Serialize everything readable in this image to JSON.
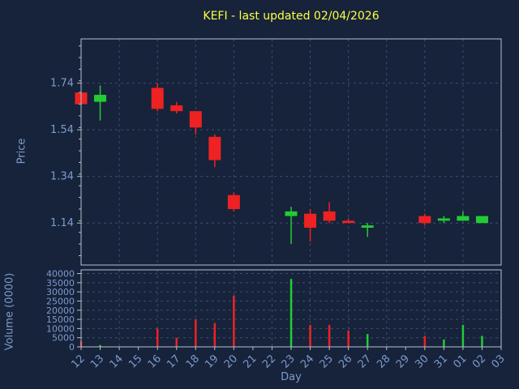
{
  "colors": {
    "background": "#16233a",
    "title": "#ffff40",
    "axis_text": "#7e9bcd",
    "grid": "#3c4f6e",
    "frame": "#b7c0cc",
    "up": "#22cc33",
    "down": "#ee2222"
  },
  "chart_data": {
    "type": "candlestick",
    "title": "KEFI - last updated 02/04/2026",
    "xlabel": "Day",
    "price_axis": {
      "label": "Price",
      "ticks": [
        "1.14",
        "1.34",
        "1.54",
        "1.74"
      ],
      "range": [
        0.96,
        1.93
      ]
    },
    "volume_axis": {
      "label": "Volume (0000)",
      "ticks": [
        0,
        5000,
        10000,
        15000,
        20000,
        25000,
        30000,
        35000,
        40000
      ],
      "range": [
        0,
        42000
      ]
    },
    "x_ticks": [
      "12",
      "13",
      "14",
      "15",
      "16",
      "17",
      "18",
      "19",
      "20",
      "21",
      "22",
      "23",
      "24",
      "25",
      "26",
      "27",
      "28",
      "29",
      "30",
      "31",
      "01",
      "02",
      "03"
    ],
    "ohlcv": [
      {
        "day": "12",
        "open": 1.7,
        "high": 1.7,
        "low": 1.65,
        "close": 1.65,
        "volume": 3000
      },
      {
        "day": "13",
        "open": 1.66,
        "high": 1.73,
        "low": 1.58,
        "close": 1.69,
        "volume": 1000
      },
      {
        "day": "16",
        "open": 1.72,
        "high": 1.74,
        "low": 1.62,
        "close": 1.63,
        "volume": 10000
      },
      {
        "day": "17",
        "open": 1.645,
        "high": 1.66,
        "low": 1.61,
        "close": 1.62,
        "volume": 5000
      },
      {
        "day": "18",
        "open": 1.62,
        "high": 1.62,
        "low": 1.52,
        "close": 1.55,
        "volume": 15000
      },
      {
        "day": "19",
        "open": 1.51,
        "high": 1.52,
        "low": 1.38,
        "close": 1.41,
        "volume": 13000
      },
      {
        "day": "20",
        "open": 1.26,
        "high": 1.27,
        "low": 1.19,
        "close": 1.2,
        "volume": 28000
      },
      {
        "day": "23",
        "open": 1.17,
        "high": 1.21,
        "low": 1.05,
        "close": 1.19,
        "volume": 37000
      },
      {
        "day": "24",
        "open": 1.18,
        "high": 1.2,
        "low": 1.06,
        "close": 1.12,
        "volume": 12000
      },
      {
        "day": "25",
        "open": 1.19,
        "high": 1.23,
        "low": 1.14,
        "close": 1.15,
        "volume": 12000
      },
      {
        "day": "26",
        "open": 1.15,
        "high": 1.16,
        "low": 1.14,
        "close": 1.14,
        "volume": 9000
      },
      {
        "day": "27",
        "open": 1.12,
        "high": 1.14,
        "low": 1.08,
        "close": 1.13,
        "volume": 7000
      },
      {
        "day": "30",
        "open": 1.17,
        "high": 1.18,
        "low": 1.13,
        "close": 1.14,
        "volume": 6000
      },
      {
        "day": "31",
        "open": 1.15,
        "high": 1.17,
        "low": 1.14,
        "close": 1.16,
        "volume": 4000
      },
      {
        "day": "01",
        "open": 1.15,
        "high": 1.19,
        "low": 1.15,
        "close": 1.17,
        "volume": 12000
      },
      {
        "day": "02",
        "open": 1.14,
        "high": 1.17,
        "low": 1.14,
        "close": 1.17,
        "volume": 6000
      }
    ]
  }
}
